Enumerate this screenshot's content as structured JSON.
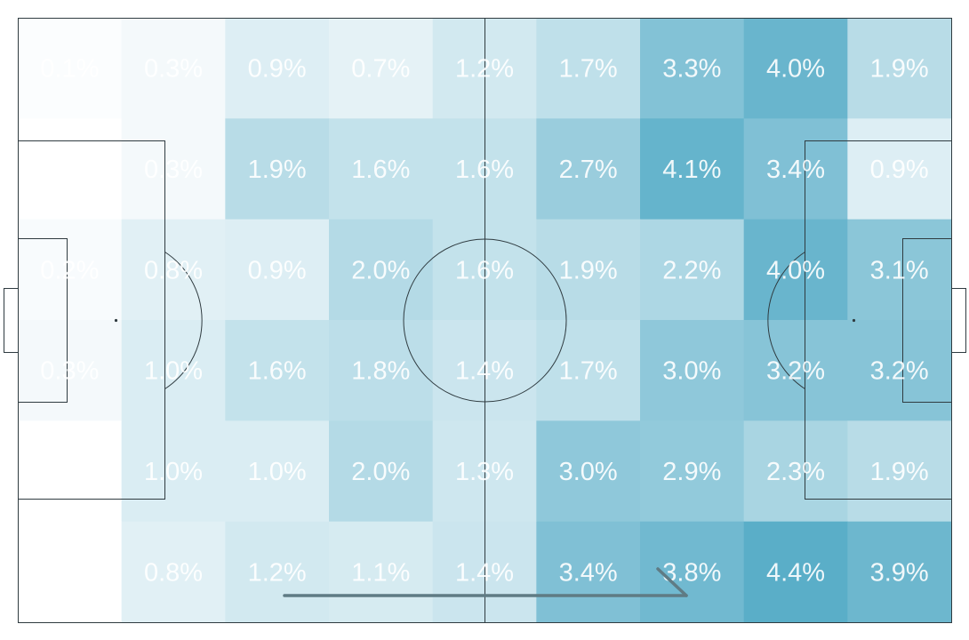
{
  "chart_data": {
    "type": "heatmap",
    "title": "",
    "xlabel": "",
    "ylabel": "",
    "value_format": "percent",
    "rows": 6,
    "cols": 9,
    "values": [
      [
        0.1,
        0.3,
        0.9,
        0.7,
        1.2,
        1.7,
        3.3,
        4.0,
        1.9
      ],
      [
        null,
        0.3,
        1.9,
        1.6,
        1.6,
        2.7,
        4.1,
        3.4,
        0.9
      ],
      [
        0.2,
        0.8,
        0.9,
        2.0,
        1.6,
        1.9,
        2.2,
        4.0,
        3.1
      ],
      [
        0.3,
        1.0,
        1.6,
        1.8,
        1.4,
        1.7,
        3.0,
        3.2,
        3.2
      ],
      [
        null,
        1.0,
        1.0,
        2.0,
        1.3,
        3.0,
        2.9,
        2.3,
        1.9
      ],
      [
        null,
        0.8,
        1.2,
        1.1,
        1.4,
        3.4,
        3.8,
        4.4,
        3.9
      ]
    ],
    "labels": [
      [
        "0.1%",
        "0.3%",
        "0.9%",
        "0.7%",
        "1.2%",
        "1.7%",
        "3.3%",
        "4.0%",
        "1.9%"
      ],
      [
        "",
        "0.3%",
        "1.9%",
        "1.6%",
        "1.6%",
        "2.7%",
        "4.1%",
        "3.4%",
        "0.9%"
      ],
      [
        "0.2%",
        "0.8%",
        "0.9%",
        "2.0%",
        "1.6%",
        "1.9%",
        "2.2%",
        "4.0%",
        "3.1%"
      ],
      [
        "0.3%",
        "1.0%",
        "1.6%",
        "1.8%",
        "1.4%",
        "1.7%",
        "3.0%",
        "3.2%",
        "3.2%"
      ],
      [
        "",
        "1.0%",
        "1.0%",
        "2.0%",
        "1.3%",
        "3.0%",
        "2.9%",
        "2.3%",
        "1.9%"
      ],
      [
        "",
        "0.8%",
        "1.2%",
        "1.1%",
        "1.4%",
        "3.4%",
        "3.8%",
        "4.4%",
        "3.9%"
      ]
    ],
    "colorscale": {
      "low": "#ffffff",
      "high": "#5aaec8",
      "max_value": 4.4
    },
    "line_color": "#2f3b40",
    "direction_arrow": "left-to-right",
    "arrow_color": "#5f7b84"
  }
}
